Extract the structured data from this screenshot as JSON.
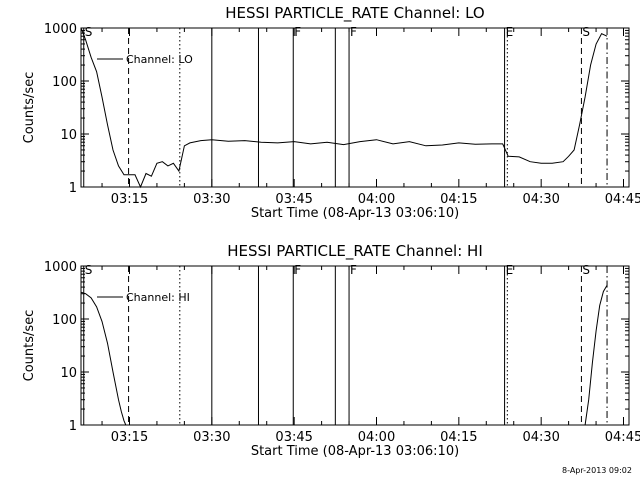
{
  "footer_date": "8-Apr-2013 09:02",
  "chart_data": [
    {
      "type": "line",
      "title": "HESSI PARTICLE_RATE Channel: LO",
      "xlabel": "Start Time (08-Apr-13 03:06:10)",
      "ylabel": "Counts/sec",
      "yscale": "log",
      "ylim": [
        1,
        1000
      ],
      "y_ticks": [
        "1",
        "10",
        "100",
        "1000"
      ],
      "xlim": [
        "03:06:10",
        "04:46:00"
      ],
      "x_ticks": [
        "03:15",
        "03:30",
        "03:45",
        "04:00",
        "04:15",
        "04:30",
        "04:45"
      ],
      "legend": "Channel: LO",
      "markers": [
        {
          "time": "03:06:40",
          "label": "S",
          "style": "solid"
        },
        {
          "time": "03:14:50",
          "label": "",
          "style": "dashed"
        },
        {
          "time": "03:24:10",
          "label": "",
          "style": "dotted"
        },
        {
          "time": "03:30:00",
          "label": "",
          "style": "solid"
        },
        {
          "time": "03:38:30",
          "label": "",
          "style": "solid"
        },
        {
          "time": "03:44:50",
          "label": "F",
          "style": "solid"
        },
        {
          "time": "03:52:30",
          "label": "",
          "style": "solid"
        },
        {
          "time": "03:55:00",
          "label": "F",
          "style": "solid"
        },
        {
          "time": "04:23:20",
          "label": "E",
          "style": "solid"
        },
        {
          "time": "04:23:50",
          "label": "",
          "style": "dotted"
        },
        {
          "time": "04:37:20",
          "label": "S",
          "style": "dashed"
        },
        {
          "time": "04:42:00",
          "label": "",
          "style": "dashdot"
        }
      ],
      "series": [
        {
          "x": [
            "03:06:10",
            "03:07:00",
            "03:08:00",
            "03:09:00",
            "03:10:00",
            "03:11:00",
            "03:12:00",
            "03:13:00",
            "03:14:00",
            "03:15:00",
            "03:16:00",
            "03:17:00",
            "03:18:00",
            "03:19:00",
            "03:20:00",
            "03:21:00",
            "03:22:00",
            "03:23:00",
            "03:24:00",
            "03:25:00",
            "03:26:00",
            "03:28:00",
            "03:30:00",
            "03:33:00",
            "03:36:00",
            "03:39:00",
            "03:42:00",
            "03:45:00",
            "03:48:00",
            "03:51:00",
            "03:54:00",
            "03:57:00",
            "04:00:00",
            "04:03:00",
            "04:06:00",
            "04:09:00",
            "04:12:00",
            "04:15:00",
            "04:18:00",
            "04:21:00",
            "04:23:00",
            "04:24:00",
            "04:26:00",
            "04:28:00",
            "04:30:00",
            "04:32:00",
            "04:34:00",
            "04:35:00",
            "04:36:00",
            "04:37:00",
            "04:38:00",
            "04:39:00",
            "04:40:00",
            "04:41:00",
            "04:42:00"
          ],
          "values": [
            1000,
            600,
            280,
            150,
            50,
            15,
            5,
            2.5,
            1.7,
            1.7,
            1.7,
            1,
            1.8,
            1.6,
            2.8,
            3,
            2.5,
            2.8,
            2,
            6,
            6.8,
            7.5,
            7.8,
            7.3,
            7.5,
            7,
            6.8,
            7.2,
            6.5,
            7,
            6.3,
            7.2,
            7.8,
            6.5,
            7.2,
            6,
            6.2,
            6.8,
            6.4,
            6.5,
            6.5,
            3.8,
            3.7,
            3,
            2.8,
            2.8,
            3,
            3.8,
            5,
            15,
            50,
            200,
            500,
            780,
            700
          ]
        }
      ]
    },
    {
      "type": "line",
      "title": "HESSI PARTICLE_RATE Channel: HI",
      "xlabel": "Start Time (08-Apr-13 03:06:10)",
      "ylabel": "Counts/sec",
      "yscale": "log",
      "ylim": [
        1,
        1000
      ],
      "y_ticks": [
        "1",
        "10",
        "100",
        "1000"
      ],
      "xlim": [
        "03:06:10",
        "04:46:00"
      ],
      "x_ticks": [
        "03:15",
        "03:30",
        "03:45",
        "04:00",
        "04:15",
        "04:30",
        "04:45"
      ],
      "legend": "Channel: HI",
      "markers": [
        {
          "time": "03:06:40",
          "label": "S",
          "style": "solid"
        },
        {
          "time": "03:14:50",
          "label": "",
          "style": "dashed"
        },
        {
          "time": "03:24:10",
          "label": "",
          "style": "dotted"
        },
        {
          "time": "03:30:00",
          "label": "",
          "style": "solid"
        },
        {
          "time": "03:38:30",
          "label": "",
          "style": "solid"
        },
        {
          "time": "03:44:50",
          "label": "F",
          "style": "solid"
        },
        {
          "time": "03:52:30",
          "label": "",
          "style": "solid"
        },
        {
          "time": "03:55:00",
          "label": "F",
          "style": "solid"
        },
        {
          "time": "04:23:20",
          "label": "E",
          "style": "solid"
        },
        {
          "time": "04:23:50",
          "label": "",
          "style": "dotted"
        },
        {
          "time": "04:37:20",
          "label": "S",
          "style": "dashed"
        },
        {
          "time": "04:42:00",
          "label": "",
          "style": "dashdot"
        }
      ],
      "series": [
        {
          "x": [
            "03:06:10",
            "03:07:00",
            "03:08:00",
            "03:09:00",
            "03:10:00",
            "03:11:00",
            "03:12:00",
            "03:13:00",
            "03:13:30",
            "03:14:00",
            "03:14:20"
          ],
          "values": [
            320,
            300,
            250,
            170,
            90,
            35,
            10,
            3,
            1.8,
            1.2,
            1
          ]
        },
        {
          "x": [
            "04:38:00",
            "04:38:40",
            "04:39:20",
            "04:40:00",
            "04:40:40",
            "04:41:20",
            "04:42:00"
          ],
          "values": [
            1,
            3,
            15,
            60,
            180,
            330,
            430
          ]
        }
      ]
    }
  ]
}
